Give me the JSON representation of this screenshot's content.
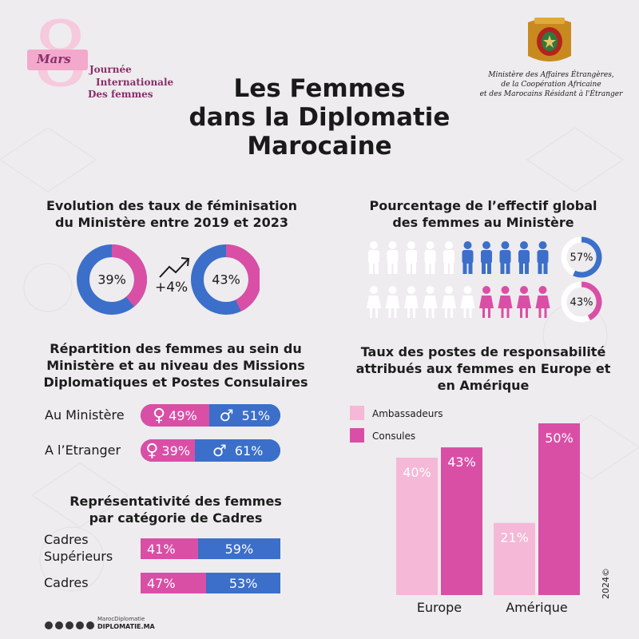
{
  "header": {
    "event_day": "8",
    "event_month": "Mars",
    "event_line1": "Journée",
    "event_line2": "Internationale",
    "event_line3": "Des femmes",
    "title_line1": "Les Femmes",
    "title_line2": "dans la Diplomatie",
    "title_line3": "Marocaine",
    "ministry_line1": "Ministère des Affaires Étrangères,",
    "ministry_line2": "de la Coopération Africaine",
    "ministry_line3": "et des Marocains Résidant à l'Étranger"
  },
  "colors": {
    "pink": "#d94fa6",
    "blue": "#3b6fc9",
    "light_pink": "#f5b8d6"
  },
  "evolution": {
    "title_line1": "Evolution des taux de féminisation",
    "title_line2": "du Ministère entre 2019 et 2023",
    "value_2019": "39%",
    "value_2023": "43%",
    "change": "+4%"
  },
  "effectif": {
    "title_line1": "Pourcentage de l’effectif global",
    "title_line2": "des femmes au Ministère",
    "men_pct": "57%",
    "women_pct": "43%"
  },
  "repartition": {
    "title_line1": "Répartition des femmes au sein du",
    "title_line2": "Ministère et au niveau des Missions",
    "title_line3": "Diplomatiques et Postes Consulaires",
    "rows": [
      {
        "label": "Au Ministère",
        "female": "49%",
        "male": "51%"
      },
      {
        "label": "A l’Etranger",
        "female": "39%",
        "male": "61%"
      }
    ]
  },
  "cadres": {
    "title_line1": "Représentativité des femmes",
    "title_line2": "par catégorie de Cadres",
    "rows": [
      {
        "label_line1": "Cadres",
        "label_line2": "Supérieurs",
        "female": "41%",
        "male": "59%"
      },
      {
        "label_line1": "Cadres",
        "label_line2": "",
        "female": "47%",
        "male": "53%"
      }
    ]
  },
  "responsabilite": {
    "title_line1": "Taux des postes de responsabilité",
    "title_line2": "attribués aux femmes en Europe et",
    "title_line3": "en Amérique"
  },
  "chart_data": [
    {
      "type": "pie",
      "title": "Evolution des taux de féminisation du Ministère entre 2019 et 2023",
      "categories": [
        "2019",
        "2023"
      ],
      "values": [
        39,
        43
      ]
    },
    {
      "type": "pie",
      "title": "Pourcentage de l’effectif global des femmes au Ministère",
      "categories": [
        "Hommes",
        "Femmes"
      ],
      "values": [
        57,
        43
      ]
    },
    {
      "type": "bar",
      "title": "Répartition des femmes au sein du Ministère et au niveau des Missions Diplomatiques et Postes Consulaires",
      "categories": [
        "Au Ministère",
        "A l’Etranger"
      ],
      "series": [
        {
          "name": "♀",
          "values": [
            49,
            39
          ]
        },
        {
          "name": "♂",
          "values": [
            51,
            61
          ]
        }
      ]
    },
    {
      "type": "bar",
      "title": "Représentativité des femmes par catégorie de Cadres",
      "categories": [
        "Cadres Supérieurs",
        "Cadres"
      ],
      "series": [
        {
          "name": "♀",
          "values": [
            41,
            47
          ]
        },
        {
          "name": "♂",
          "values": [
            59,
            53
          ]
        }
      ]
    },
    {
      "type": "bar",
      "title": "Taux des postes de responsabilité attribués aux femmes en Europe et en Amérique",
      "categories": [
        "Europe",
        "Amérique"
      ],
      "series": [
        {
          "name": "Ambassadeurs",
          "values": [
            40,
            21
          ]
        },
        {
          "name": "Consules",
          "values": [
            43,
            50
          ]
        }
      ],
      "value_labels": [
        [
          "40%",
          "21%"
        ],
        [
          "43%",
          "50%"
        ]
      ],
      "ylim": [
        0,
        50
      ]
    }
  ],
  "footer": {
    "handle": "MarocDiplomatie",
    "site": "DIPLOMATIE.MA",
    "year": "2024©"
  }
}
